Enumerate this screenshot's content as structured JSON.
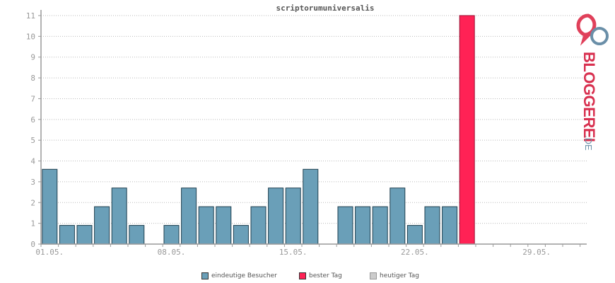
{
  "chart_data": {
    "type": "bar",
    "title": "scriptorumuniversalis",
    "ylim": [
      0,
      11
    ],
    "yticks": [
      "0",
      "1",
      "2",
      "3",
      "4",
      "5",
      "6",
      "7",
      "8",
      "9",
      "10",
      "11"
    ],
    "xtick_labels": [
      {
        "day": 1,
        "label": "01.05."
      },
      {
        "day": 8,
        "label": "08.05."
      },
      {
        "day": 15,
        "label": "15.05."
      },
      {
        "day": 22,
        "label": "22.05."
      },
      {
        "day": 29,
        "label": "29.05."
      }
    ],
    "days": [
      1,
      2,
      3,
      4,
      5,
      6,
      7,
      8,
      9,
      10,
      11,
      12,
      13,
      14,
      15,
      16,
      17,
      18,
      19,
      20,
      21,
      22,
      23,
      24,
      25,
      26,
      27,
      28,
      29,
      30,
      31
    ],
    "values": [
      3.6,
      0.9,
      0.9,
      1.8,
      2.7,
      0.9,
      0,
      0.9,
      2.7,
      1.8,
      1.8,
      0.9,
      1.8,
      2.7,
      2.7,
      3.6,
      0,
      1.8,
      1.8,
      1.8,
      2.7,
      0.9,
      1.8,
      1.8,
      11,
      0,
      0,
      0,
      0,
      0,
      0
    ],
    "best_day": 25,
    "grid": true,
    "legend_position": "bottom",
    "colors": {
      "visitors": "#6a9fb8",
      "best": "#ff2255",
      "today": "#cccccc"
    }
  },
  "legend": {
    "visitors": "eindeutige Besucher",
    "best": "bester Tag",
    "today": "heutiger Tag"
  },
  "logo": {
    "brand": "BLOGGEREI",
    "suffix": ".DE"
  }
}
